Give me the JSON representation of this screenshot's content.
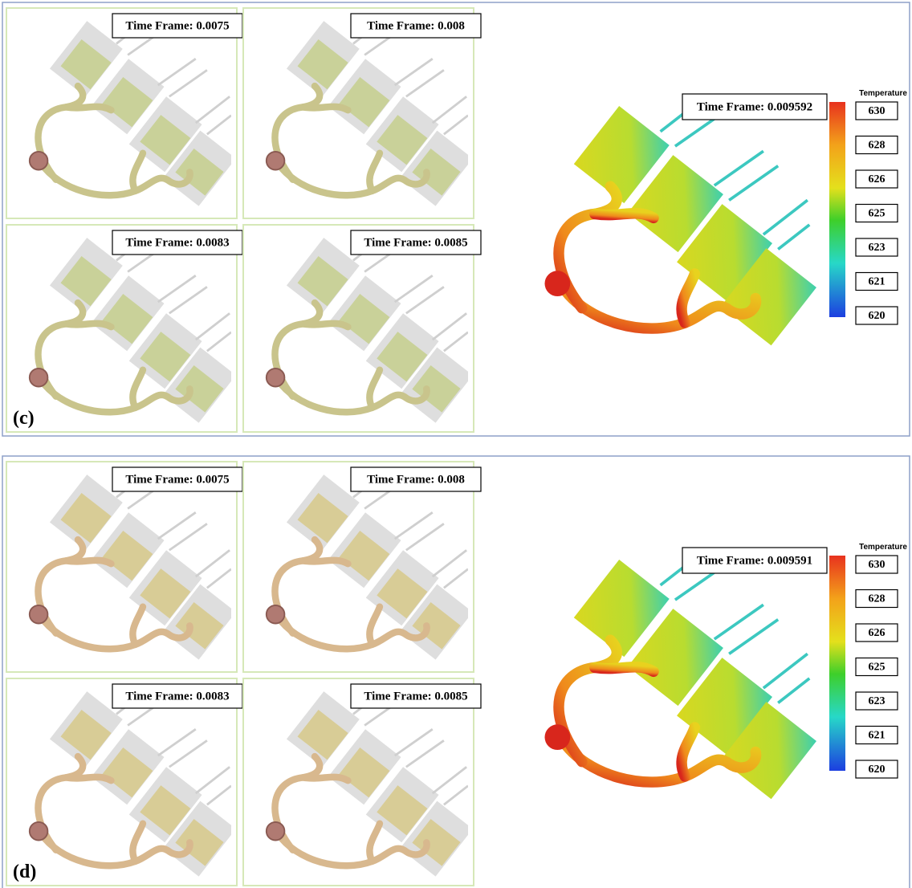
{
  "panels": [
    {
      "label": "(c)",
      "frames": [
        {
          "time_label": "Time Frame: 0.0075"
        },
        {
          "time_label": "Time Frame: 0.008"
        },
        {
          "time_label": "Time Frame: 0.0083"
        },
        {
          "time_label": "Time Frame: 0.0085"
        }
      ],
      "main": {
        "time_label": "Time Frame: 0.009592",
        "colorbar": {
          "title": "Temperature",
          "ticks": [
            630,
            628,
            626,
            625,
            623,
            621,
            620
          ]
        }
      }
    },
    {
      "label": "(d)",
      "frames": [
        {
          "time_label": "Time Frame: 0.0075"
        },
        {
          "time_label": "Time Frame: 0.008"
        },
        {
          "time_label": "Time Frame: 0.0083"
        },
        {
          "time_label": "Time Frame: 0.0085"
        }
      ],
      "main": {
        "time_label": "Time Frame: 0.009591",
        "colorbar": {
          "title": "Temperature",
          "ticks": [
            630,
            628,
            626,
            625,
            623,
            621,
            620
          ]
        }
      }
    }
  ]
}
